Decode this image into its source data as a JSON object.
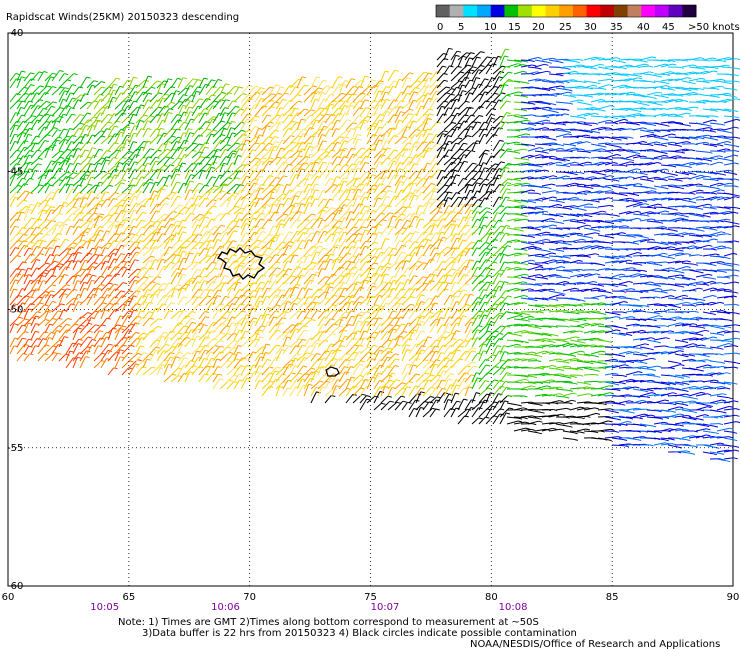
{
  "title": "Rapidscat Winds(25KM) 20150323 descending",
  "legend": {
    "labels": [
      "0",
      "5",
      "10",
      "15",
      "20",
      "25",
      "30",
      "35",
      "40",
      "45",
      ">50 knots"
    ],
    "colors": [
      "#606060",
      "#b0b0b0",
      "#00e0ff",
      "#00a8ff",
      "#0000e0",
      "#00c000",
      "#a0e000",
      "#ffff00",
      "#ffd000",
      "#ffa000",
      "#ff6000",
      "#ff0000",
      "#c00000",
      "#804000",
      "#c08060",
      "#ff00ff",
      "#c000ff",
      "#6000c0",
      "#200040"
    ]
  },
  "map": {
    "lon_range": [
      60,
      90
    ],
    "lat_range": [
      -60,
      -40
    ],
    "lon_ticks": [
      "60",
      "65",
      "70",
      "75",
      "80",
      "85",
      "90"
    ],
    "lat_ticks": [
      "-40",
      "-45",
      "-50",
      "-55",
      "-60"
    ],
    "time_labels": [
      {
        "lon": 64,
        "text": "10:05"
      },
      {
        "lon": 69,
        "text": "10:06"
      },
      {
        "lon": 75.6,
        "text": "10:07"
      },
      {
        "lon": 80.9,
        "text": "10:08"
      }
    ]
  },
  "notes": [
    "Note: 1) Times are GMT 2)Times along bottom correspond to measurement at ~50S",
    "3)Data buffer is 22 hrs from 20150323 4) Black circles indicate possible contamination",
    "NOAA/NESDIS/Office of Research and Applications"
  ]
}
